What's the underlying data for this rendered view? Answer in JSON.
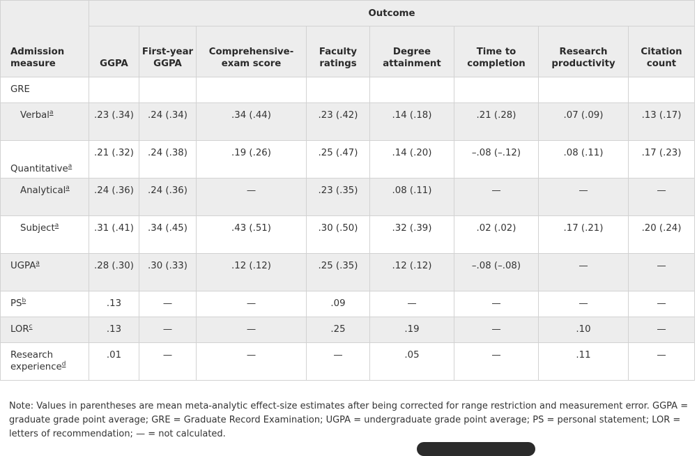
{
  "header": {
    "outcome": "Outcome",
    "admission_measure": "Admission measure",
    "columns": [
      "GGPA",
      "First-year GGPA",
      "Comprehensive-exam score",
      "Faculty ratings",
      "Degree attainment",
      "Time to completion",
      "Research productivity",
      "Citation count"
    ]
  },
  "rows": [
    {
      "label": "GRE",
      "sup": "",
      "cells": [
        "",
        "",
        "",
        "",
        "",
        "",
        "",
        ""
      ]
    },
    {
      "label": "Verbal",
      "sup": "a",
      "cells": [
        ".23 (.34)",
        ".24 (.34)",
        ".34 (.44)",
        ".23 (.42)",
        ".14 (.18)",
        ".21 (.28)",
        ".07 (.09)",
        ".13 (.17)"
      ]
    },
    {
      "label": "Quantitative",
      "sup": "a",
      "cells": [
        ".21 (.32)",
        ".24 (.38)",
        ".19 (.26)",
        ".25 (.47)",
        ".14 (.20)",
        "–.08 (–.12)",
        ".08 (.11)",
        ".17 (.23)"
      ]
    },
    {
      "label": "Analytical",
      "sup": "a",
      "cells": [
        ".24 (.36)",
        ".24 (.36)",
        "—",
        ".23 (.35)",
        ".08 (.11)",
        "—",
        "—",
        "—"
      ]
    },
    {
      "label": "Subject",
      "sup": "a",
      "cells": [
        ".31 (.41)",
        ".34 (.45)",
        ".43 (.51)",
        ".30 (.50)",
        ".32 (.39)",
        ".02 (.02)",
        ".17 (.21)",
        ".20 (.24)"
      ]
    },
    {
      "label": "UGPA",
      "sup": "a",
      "cells": [
        ".28 (.30)",
        ".30 (.33)",
        ".12 (.12)",
        ".25 (.35)",
        ".12 (.12)",
        "–.08 (–.08)",
        "—",
        "—"
      ]
    },
    {
      "label": "PS",
      "sup": "b",
      "cells": [
        ".13",
        "—",
        "—",
        ".09",
        "—",
        "—",
        "—",
        "—"
      ]
    },
    {
      "label": "LOR",
      "sup": "c",
      "cells": [
        ".13",
        "—",
        "—",
        ".25",
        ".19",
        "—",
        ".10",
        "—"
      ]
    },
    {
      "label": "Research experience",
      "sup": "d",
      "cells": [
        ".01",
        "—",
        "—",
        "—",
        ".05",
        "—",
        ".11",
        "—"
      ]
    }
  ],
  "note": "Note: Values in parentheses are mean meta-analytic effect-size estimates after being corrected for range restriction and measurement error. GGPA = graduate grade point average; GRE = Graduate Record Examination; UGPA = undergraduate grade point average; PS = personal statement; LOR = letters of recommendation; — = not calculated."
}
